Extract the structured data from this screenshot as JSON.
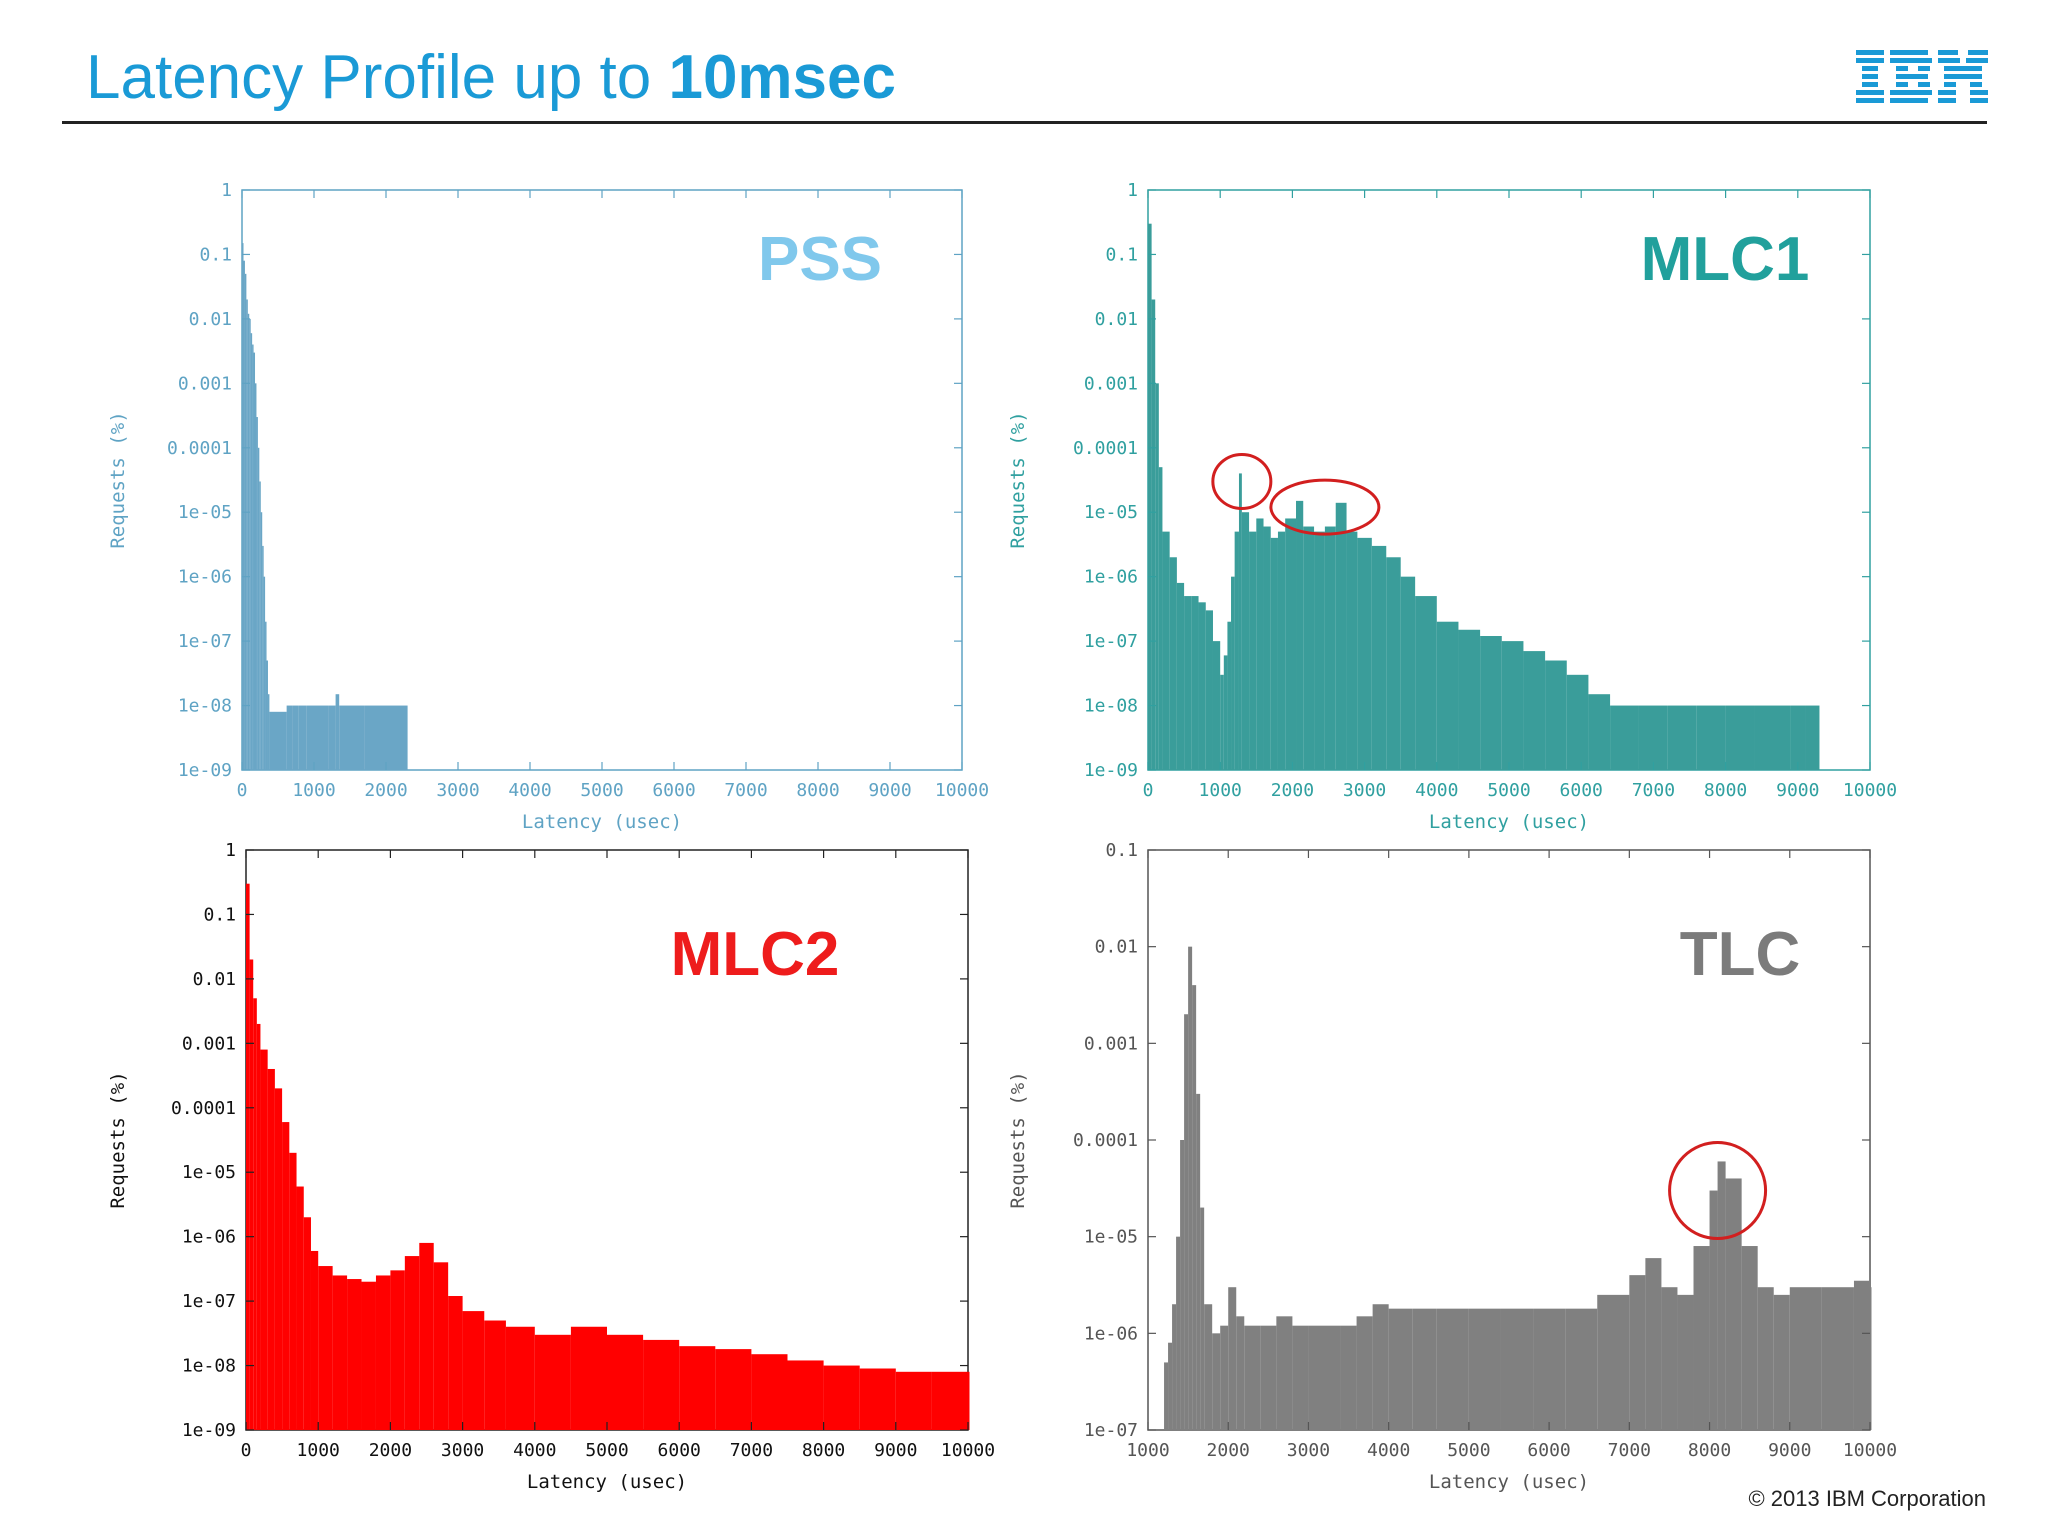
{
  "slide": {
    "title_main": "Latency Profile up to ",
    "title_bold": "10msec",
    "logo_text": "IBM",
    "footer": "© 2013 IBM Corporation"
  },
  "colors": {
    "title": "#1a9ad6",
    "logo": "#1a9ad6"
  },
  "chart_data": [
    {
      "id": "pss",
      "type": "bar",
      "title": "PSS",
      "title_color": "#80c8ec",
      "color": "#6aa6c6",
      "axis_color": "#5fa3c4",
      "xlabel": "Latency (usec)",
      "ylabel": "Requests (%)",
      "xlim": [
        0,
        10000
      ],
      "ylim": [
        1e-09,
        1
      ],
      "yscale": "log",
      "xticks": [
        "0",
        "1000",
        "2000",
        "3000",
        "4000",
        "5000",
        "6000",
        "7000",
        "8000",
        "9000",
        "10000"
      ],
      "yticks": [
        "1",
        "0.1",
        "0.01",
        "0.001",
        "0.0001",
        "1e-05",
        "1e-06",
        "1e-07",
        "1e-08",
        "1e-09"
      ],
      "grid": false,
      "points": [
        [
          0,
          0.15
        ],
        [
          20,
          0.08
        ],
        [
          40,
          0.05
        ],
        [
          60,
          0.02
        ],
        [
          80,
          0.012
        ],
        [
          100,
          0.01
        ],
        [
          120,
          0.006
        ],
        [
          140,
          0.004
        ],
        [
          160,
          0.003
        ],
        [
          180,
          0.001
        ],
        [
          200,
          0.0003
        ],
        [
          220,
          0.0001
        ],
        [
          240,
          3e-05
        ],
        [
          260,
          1e-05
        ],
        [
          280,
          3e-06
        ],
        [
          300,
          1e-06
        ],
        [
          320,
          2e-07
        ],
        [
          340,
          5e-08
        ],
        [
          360,
          1.5e-08
        ],
        [
          380,
          8e-09
        ],
        [
          620,
          1e-08
        ],
        [
          700,
          1e-08
        ],
        [
          780,
          1e-08
        ],
        [
          900,
          1e-08
        ],
        [
          1200,
          1e-08
        ],
        [
          1250,
          1e-08
        ],
        [
          1300,
          1.5e-08
        ],
        [
          1350,
          1e-08
        ],
        [
          1500,
          1e-08
        ],
        [
          1700,
          1e-08
        ],
        [
          2000,
          1e-08
        ]
      ]
    },
    {
      "id": "mlc1",
      "type": "bar",
      "title": "MLC1",
      "title_color": "#21a09c",
      "color": "#3a9d9a",
      "axis_color": "#30a0a0",
      "xlabel": "Latency (usec)",
      "ylabel": "Requests (%)",
      "xlim": [
        0,
        10000
      ],
      "ylim": [
        1e-09,
        1
      ],
      "yscale": "log",
      "xticks": [
        "0",
        "1000",
        "2000",
        "3000",
        "4000",
        "5000",
        "6000",
        "7000",
        "8000",
        "9000",
        "10000"
      ],
      "yticks": [
        "1",
        "0.1",
        "0.01",
        "0.001",
        "0.0001",
        "1e-05",
        "1e-06",
        "1e-07",
        "1e-08",
        "1e-09"
      ],
      "grid": false,
      "points": [
        [
          0,
          0.3
        ],
        [
          50,
          0.02
        ],
        [
          100,
          0.001
        ],
        [
          150,
          5e-05
        ],
        [
          200,
          5e-06
        ],
        [
          300,
          2e-06
        ],
        [
          400,
          8e-07
        ],
        [
          500,
          5e-07
        ],
        [
          600,
          5e-07
        ],
        [
          700,
          4e-07
        ],
        [
          800,
          3e-07
        ],
        [
          900,
          1e-07
        ],
        [
          1000,
          3e-08
        ],
        [
          1050,
          6e-08
        ],
        [
          1100,
          2e-07
        ],
        [
          1150,
          1e-06
        ],
        [
          1200,
          5e-06
        ],
        [
          1260,
          4e-05
        ],
        [
          1300,
          1e-05
        ],
        [
          1400,
          5e-06
        ],
        [
          1500,
          8e-06
        ],
        [
          1600,
          6e-06
        ],
        [
          1700,
          4e-06
        ],
        [
          1800,
          5e-06
        ],
        [
          1900,
          8e-06
        ],
        [
          2050,
          1.5e-05
        ],
        [
          2150,
          6e-06
        ],
        [
          2300,
          5e-06
        ],
        [
          2450,
          6e-06
        ],
        [
          2600,
          1.4e-05
        ],
        [
          2750,
          5e-06
        ],
        [
          2900,
          4e-06
        ],
        [
          3100,
          3e-06
        ],
        [
          3300,
          2e-06
        ],
        [
          3500,
          1e-06
        ],
        [
          3700,
          5e-07
        ],
        [
          4000,
          2e-07
        ],
        [
          4300,
          1.5e-07
        ],
        [
          4600,
          1.2e-07
        ],
        [
          4900,
          1e-07
        ],
        [
          5200,
          7e-08
        ],
        [
          5500,
          5e-08
        ],
        [
          5800,
          3e-08
        ],
        [
          6100,
          1.5e-08
        ],
        [
          6400,
          1e-08
        ],
        [
          6800,
          1e-08
        ],
        [
          7200,
          1e-08
        ],
        [
          7600,
          1e-08
        ],
        [
          8000,
          1e-08
        ],
        [
          8400,
          1e-08
        ],
        [
          8900,
          1e-08
        ],
        [
          9100,
          1e-08
        ]
      ],
      "annotations": [
        {
          "type": "circle",
          "x": 1300,
          "y": 3e-05
        },
        {
          "type": "ellipse",
          "x": 2450,
          "y": 1.2e-05
        }
      ]
    },
    {
      "id": "mlc2",
      "type": "bar",
      "title": "MLC2",
      "title_color": "#ee1c1c",
      "color": "#ff0000",
      "axis_color": "#222222",
      "xlabel": "Latency (usec)",
      "ylabel": "Requests (%)",
      "xlim": [
        0,
        10000
      ],
      "ylim": [
        1e-09,
        1
      ],
      "yscale": "log",
      "xticks": [
        "0",
        "1000",
        "2000",
        "3000",
        "4000",
        "5000",
        "6000",
        "7000",
        "8000",
        "9000",
        "10000"
      ],
      "yticks": [
        "1",
        "0.1",
        "0.01",
        "0.001",
        "0.0001",
        "1e-05",
        "1e-06",
        "1e-07",
        "1e-08",
        "1e-09"
      ],
      "grid": false,
      "points": [
        [
          0,
          0.3
        ],
        [
          50,
          0.02
        ],
        [
          100,
          0.005
        ],
        [
          150,
          0.002
        ],
        [
          200,
          0.0008
        ],
        [
          300,
          0.0004
        ],
        [
          400,
          0.0002
        ],
        [
          500,
          6e-05
        ],
        [
          600,
          2e-05
        ],
        [
          700,
          6e-06
        ],
        [
          800,
          2e-06
        ],
        [
          900,
          6e-07
        ],
        [
          1000,
          3.5e-07
        ],
        [
          1200,
          2.5e-07
        ],
        [
          1400,
          2.2e-07
        ],
        [
          1600,
          2e-07
        ],
        [
          1800,
          2.5e-07
        ],
        [
          2000,
          3e-07
        ],
        [
          2200,
          5e-07
        ],
        [
          2400,
          8e-07
        ],
        [
          2600,
          4e-07
        ],
        [
          2800,
          1.2e-07
        ],
        [
          3000,
          7e-08
        ],
        [
          3300,
          5e-08
        ],
        [
          3600,
          4e-08
        ],
        [
          4000,
          3e-08
        ],
        [
          4500,
          4e-08
        ],
        [
          5000,
          3e-08
        ],
        [
          5500,
          2.5e-08
        ],
        [
          6000,
          2e-08
        ],
        [
          6500,
          1.8e-08
        ],
        [
          7000,
          1.5e-08
        ],
        [
          7500,
          1.2e-08
        ],
        [
          8000,
          1e-08
        ],
        [
          8500,
          9e-09
        ],
        [
          9000,
          8e-09
        ],
        [
          9500,
          8e-09
        ],
        [
          10000,
          8e-09
        ]
      ]
    },
    {
      "id": "tlc",
      "type": "bar",
      "title": "TLC",
      "title_color": "#7b7b7b",
      "color": "#808080",
      "axis_color": "#555555",
      "xlabel": "Latency (usec)",
      "ylabel": "Requests (%)",
      "xlim": [
        1000,
        10000
      ],
      "ylim": [
        1e-07,
        0.1
      ],
      "yscale": "log",
      "xticks": [
        "1000",
        "2000",
        "3000",
        "4000",
        "5000",
        "6000",
        "7000",
        "8000",
        "9000",
        "10000"
      ],
      "yticks": [
        "0.1",
        "0.01",
        "0.001",
        "0.0001",
        "1e-05",
        "1e-06",
        "1e-07"
      ],
      "grid": false,
      "points": [
        [
          1200,
          5e-07
        ],
        [
          1250,
          8e-07
        ],
        [
          1300,
          2e-06
        ],
        [
          1350,
          1e-05
        ],
        [
          1400,
          0.0001
        ],
        [
          1450,
          0.002
        ],
        [
          1500,
          0.01
        ],
        [
          1550,
          0.004
        ],
        [
          1600,
          0.0003
        ],
        [
          1650,
          2e-05
        ],
        [
          1700,
          2e-06
        ],
        [
          1800,
          1e-06
        ],
        [
          1900,
          1.2e-06
        ],
        [
          2000,
          3e-06
        ],
        [
          2100,
          1.5e-06
        ],
        [
          2200,
          1.2e-06
        ],
        [
          2400,
          1.2e-06
        ],
        [
          2600,
          1.5e-06
        ],
        [
          2800,
          1.2e-06
        ],
        [
          3000,
          1.2e-06
        ],
        [
          3200,
          1.2e-06
        ],
        [
          3400,
          1.2e-06
        ],
        [
          3600,
          1.5e-06
        ],
        [
          3800,
          2e-06
        ],
        [
          4000,
          1.8e-06
        ],
        [
          4300,
          1.8e-06
        ],
        [
          4600,
          1.8e-06
        ],
        [
          5000,
          1.8e-06
        ],
        [
          5400,
          1.8e-06
        ],
        [
          5800,
          1.8e-06
        ],
        [
          6200,
          1.8e-06
        ],
        [
          6600,
          2.5e-06
        ],
        [
          7000,
          4e-06
        ],
        [
          7200,
          6e-06
        ],
        [
          7400,
          3e-06
        ],
        [
          7600,
          2.5e-06
        ],
        [
          7800,
          8e-06
        ],
        [
          8000,
          3e-05
        ],
        [
          8100,
          6e-05
        ],
        [
          8200,
          4e-05
        ],
        [
          8400,
          8e-06
        ],
        [
          8600,
          3e-06
        ],
        [
          8800,
          2.5e-06
        ],
        [
          9000,
          3e-06
        ],
        [
          9400,
          3e-06
        ],
        [
          9800,
          3.5e-06
        ],
        [
          10000,
          3e-06
        ]
      ],
      "annotations": [
        {
          "type": "circle",
          "x": 8100,
          "y": 3e-05
        }
      ]
    }
  ]
}
